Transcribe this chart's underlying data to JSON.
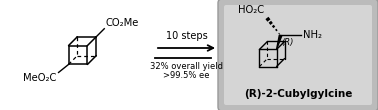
{
  "bg_color": "#ffffff",
  "panel_outer_color": "#b0b0b0",
  "panel_inner_color": "#d8d8d8",
  "text_color": "#000000",
  "title": "(R)-2-Cubylgylcine",
  "steps_text": "10 steps",
  "yield_text": "32% overall yield",
  "ee_text": ">99.5% ee",
  "left_top_label": "CO₂Me",
  "left_bot_label": "MeO₂C",
  "right_top_label": "HO₂C",
  "right_r_label": "(R)",
  "right_nh2_label": "NH₂"
}
